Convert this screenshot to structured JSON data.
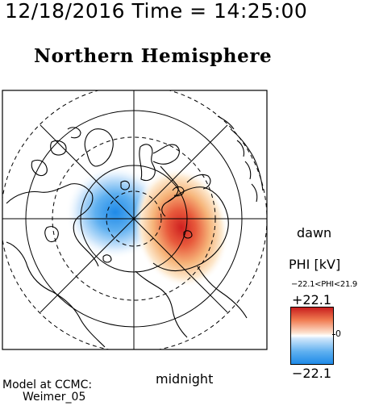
{
  "header": {
    "datetime": "12/18/2016 Time = 14:25:00",
    "hemisphere": "Northern Hemisphere"
  },
  "map": {
    "dawn_label": "dawn",
    "midnight_label": "midnight",
    "potential_colors": {
      "negative": "#1f8ae8",
      "positive": "#d42a2a",
      "neutral": "#ffffff"
    }
  },
  "colorbar": {
    "title": "PHI [kV]",
    "range_text": "−22.1<PHI<21.9",
    "max_label": "+22.1",
    "min_label": "−22.1",
    "zero_label": "0"
  },
  "credit": {
    "line1": "Model at CCMC:",
    "line2": "Weimer_05"
  }
}
